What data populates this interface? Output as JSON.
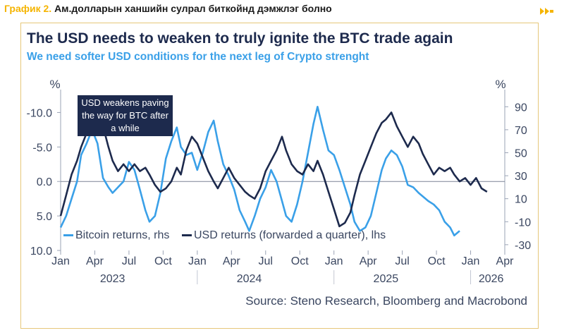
{
  "header": {
    "label": "График 2.",
    "text": "Ам.долларын ханшийн сулрал биткойнд дэмжлэг болно"
  },
  "source": "Source: Steno Research, Bloomberg and Macrobond",
  "colors": {
    "btc": "#3aa0e8",
    "usd": "#1d2a4d",
    "accent": "#f5b400"
  },
  "chart_data": {
    "type": "line",
    "title": "The USD needs to weaken to truly ignite the BTC trade again",
    "subtitle": "We need softer USD conditions for the next leg of Crypto strenght",
    "left_axis": {
      "unit": "%",
      "min": -12.5,
      "max": 10.0,
      "inverted": true,
      "ticks": [
        -10.0,
        -5.0,
        0.0,
        5.0,
        10.0
      ],
      "tick_labels": [
        "-10.0",
        "-5.0",
        "0.0",
        "5.0",
        "10.0"
      ]
    },
    "right_axis": {
      "unit": "%",
      "min": -35,
      "max": 100,
      "ticks": [
        90,
        70,
        50,
        30,
        10,
        -10,
        -30
      ],
      "tick_labels": [
        "90",
        "70",
        "50",
        "30",
        "10",
        "-10",
        "-30"
      ]
    },
    "x_axis": {
      "start": 2023.0,
      "end": 2026.25,
      "ticks": [
        2023.0,
        2023.25,
        2023.5,
        2023.75,
        2024.0,
        2024.25,
        2024.5,
        2024.75,
        2025.0,
        2025.25,
        2025.5,
        2025.75,
        2026.0,
        2026.25
      ],
      "month_labels": [
        "Jan",
        "Apr",
        "Jul",
        "Oct",
        "Jan",
        "Apr",
        "Jul",
        "Oct",
        "Jan",
        "Apr",
        "Jul",
        "Oct",
        "Jan",
        "Apr"
      ],
      "years": [
        {
          "label": "2023",
          "x": 2023.38
        },
        {
          "label": "2024",
          "x": 2024.38
        },
        {
          "label": "2025",
          "x": 2025.38
        },
        {
          "label": "2026",
          "x": 2026.15
        }
      ]
    },
    "annotation": {
      "text": [
        "USD weakens paving",
        "the way for BTC after",
        "a while"
      ]
    },
    "series": [
      {
        "name": "Bitcoin returns, rhs",
        "axis": "right",
        "x": [
          2023.0,
          2023.04,
          2023.08,
          2023.12,
          2023.15,
          2023.19,
          2023.23,
          2023.27,
          2023.31,
          2023.35,
          2023.38,
          2023.42,
          2023.46,
          2023.5,
          2023.54,
          2023.58,
          2023.62,
          2023.65,
          2023.69,
          2023.73,
          2023.77,
          2023.81,
          2023.85,
          2023.88,
          2023.92,
          2023.96,
          2024.0,
          2024.04,
          2024.08,
          2024.12,
          2024.15,
          2024.19,
          2024.23,
          2024.27,
          2024.31,
          2024.35,
          2024.38,
          2024.42,
          2024.46,
          2024.5,
          2024.54,
          2024.58,
          2024.62,
          2024.65,
          2024.69,
          2024.73,
          2024.77,
          2024.81,
          2024.85,
          2024.88,
          2024.92,
          2024.96,
          2025.0,
          2025.04,
          2025.08,
          2025.12,
          2025.15,
          2025.19,
          2025.23,
          2025.27,
          2025.31,
          2025.35,
          2025.38,
          2025.42,
          2025.46,
          2025.5,
          2025.54,
          2025.58,
          2025.62,
          2025.65,
          2025.69,
          2025.73,
          2025.77,
          2025.81,
          2025.85,
          2025.88,
          2025.92
        ],
        "values": [
          -15,
          -5,
          10,
          25,
          48,
          58,
          70,
          58,
          28,
          20,
          15,
          20,
          25,
          42,
          35,
          18,
          0,
          -10,
          -5,
          15,
          45,
          60,
          72,
          55,
          48,
          50,
          35,
          50,
          68,
          78,
          60,
          40,
          30,
          18,
          0,
          -10,
          -18,
          -5,
          10,
          20,
          35,
          25,
          8,
          -5,
          -10,
          5,
          25,
          50,
          75,
          90,
          70,
          52,
          48,
          35,
          20,
          5,
          -10,
          -18,
          -15,
          -5,
          15,
          35,
          45,
          52,
          48,
          38,
          22,
          20,
          15,
          12,
          8,
          5,
          0,
          -10,
          -15,
          -22,
          -18
        ]
      },
      {
        "name": "USD returns (forwarded a quarter), lhs",
        "axis": "left",
        "x": [
          2023.0,
          2023.04,
          2023.08,
          2023.12,
          2023.15,
          2023.19,
          2023.23,
          2023.27,
          2023.31,
          2023.35,
          2023.38,
          2023.42,
          2023.46,
          2023.5,
          2023.54,
          2023.58,
          2023.62,
          2023.65,
          2023.69,
          2023.73,
          2023.77,
          2023.81,
          2023.85,
          2023.88,
          2023.92,
          2023.96,
          2024.0,
          2024.04,
          2024.08,
          2024.12,
          2024.15,
          2024.19,
          2024.23,
          2024.27,
          2024.31,
          2024.35,
          2024.38,
          2024.42,
          2024.46,
          2024.5,
          2024.54,
          2024.58,
          2024.62,
          2024.65,
          2024.69,
          2024.73,
          2024.77,
          2024.81,
          2024.85,
          2024.88,
          2024.92,
          2024.96,
          2025.0,
          2025.04,
          2025.08,
          2025.12,
          2025.15,
          2025.19,
          2025.23,
          2025.27,
          2025.31,
          2025.35,
          2025.38,
          2025.42,
          2025.46,
          2025.5,
          2025.54,
          2025.58,
          2025.62,
          2025.65,
          2025.69,
          2025.73,
          2025.77,
          2025.81,
          2025.85,
          2025.88,
          2025.92,
          2025.96,
          2026.0,
          2026.04,
          2026.08,
          2026.12
        ],
        "values": [
          5.0,
          2.0,
          -1.0,
          -3.0,
          -5.0,
          -7.0,
          -9.0,
          -10.5,
          -8.0,
          -5.0,
          -3.0,
          -1.5,
          -2.5,
          -1.5,
          -2.5,
          -1.5,
          -2.0,
          -1.0,
          0.5,
          1.5,
          1.0,
          0.0,
          -2.0,
          -1.0,
          -4.5,
          -6.5,
          -5.5,
          -3.5,
          -1.5,
          0.0,
          1.0,
          -0.5,
          -2.0,
          -0.5,
          0.5,
          1.5,
          2.0,
          2.5,
          1.0,
          -1.5,
          -3.0,
          -4.5,
          -6.5,
          -4.5,
          -2.5,
          -1.5,
          -1.0,
          -2.5,
          -1.5,
          -3.0,
          -1.0,
          1.5,
          4.0,
          6.5,
          6.0,
          4.5,
          2.0,
          -1.0,
          -3.0,
          -5.0,
          -7.0,
          -8.5,
          -9.0,
          -10.0,
          -8.0,
          -6.5,
          -5.0,
          -6.5,
          -5.5,
          -4.0,
          -2.5,
          -1.0,
          -2.0,
          -1.5,
          -2.0,
          -1.0,
          0.0,
          -0.5,
          0.5,
          -0.5,
          1.0,
          1.5
        ]
      }
    ]
  }
}
